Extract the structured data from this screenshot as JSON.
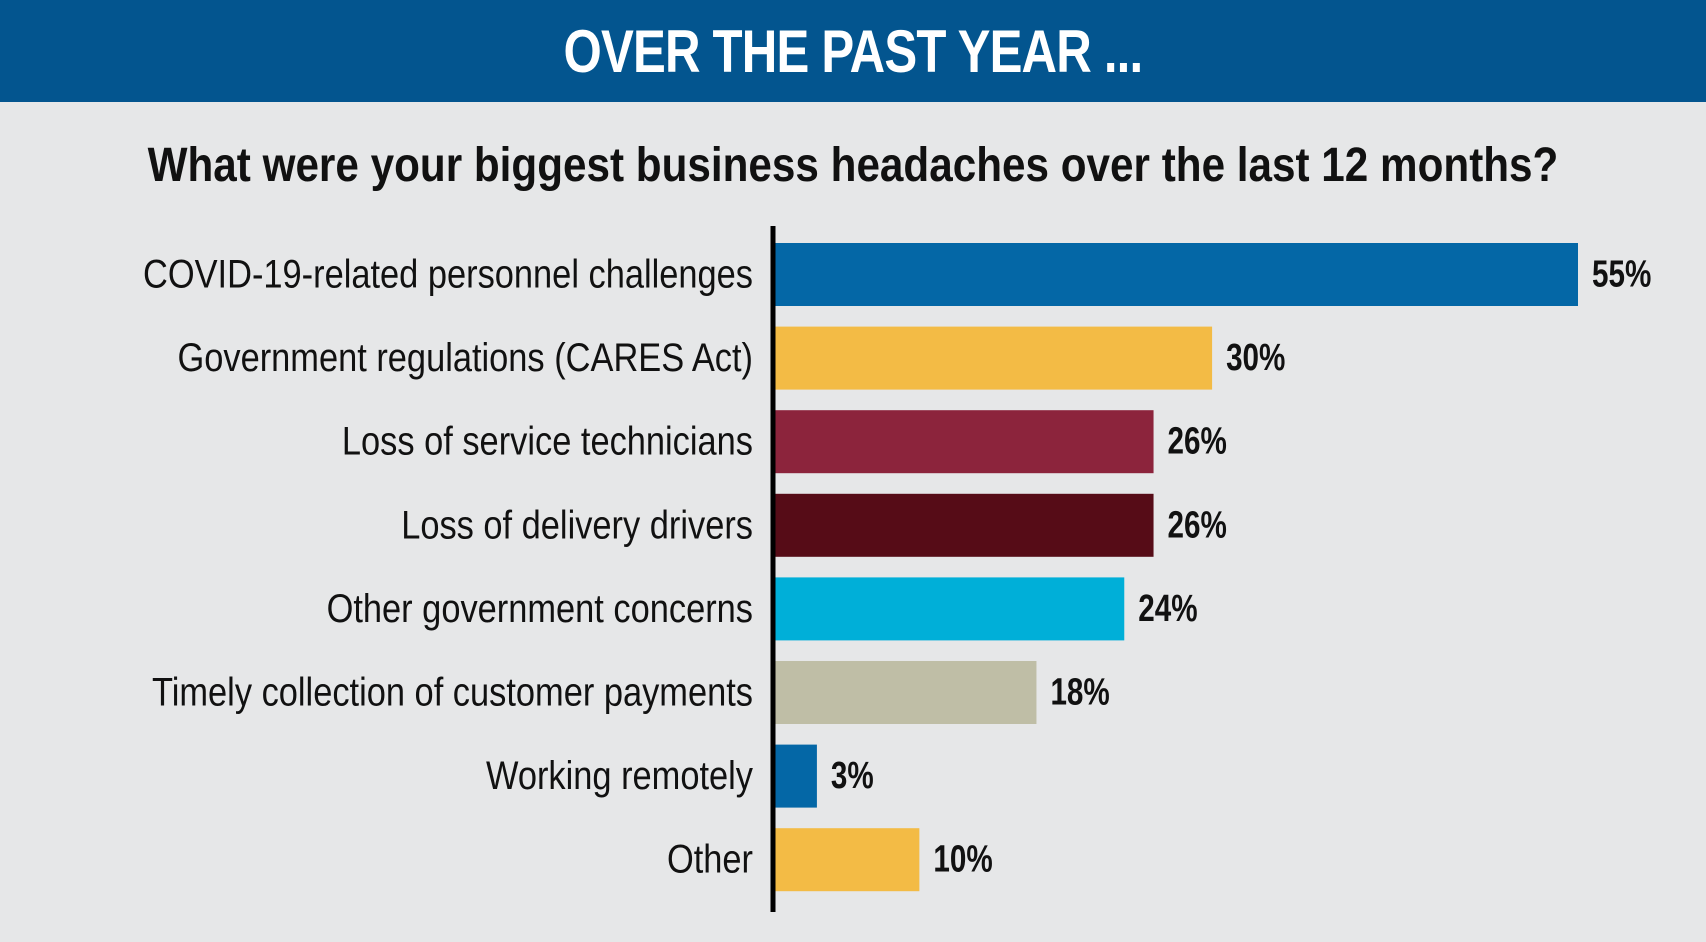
{
  "header": {
    "title": "OVER THE PAST YEAR ..."
  },
  "chart_data": {
    "type": "bar",
    "orientation": "horizontal",
    "title": "What were your biggest business headaches over the last 12 months?",
    "categories": [
      "COVID-19-related personnel challenges",
      "Government regulations (CARES Act)",
      "Loss of service technicians",
      "Loss of delivery drivers",
      "Other government concerns",
      "Timely collection of customer payments",
      "Working remotely",
      "Other"
    ],
    "values": [
      55,
      30,
      26,
      26,
      24,
      18,
      3,
      10
    ],
    "value_labels": [
      "55%",
      "30%",
      "26%",
      "26%",
      "24%",
      "18%",
      "3%",
      "10%"
    ],
    "colors": [
      "#0467a6",
      "#f3bb45",
      "#8c243c",
      "#560c17",
      "#00afd8",
      "#bfbea6",
      "#0467a6",
      "#f3bb45"
    ],
    "xlim": [
      0,
      55
    ],
    "grid": false,
    "legend": "none"
  }
}
